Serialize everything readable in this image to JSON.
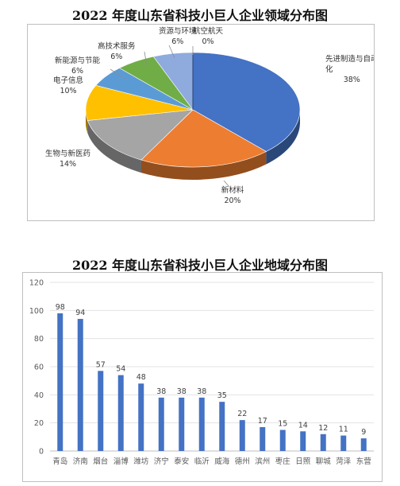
{
  "chart_data": [
    {
      "type": "pie",
      "title": "2022 年度山东省科技小巨人企业领域分布图",
      "slices": [
        {
          "name": "先进制造与自动化",
          "label_lines": [
            "先进制造与自动",
            "化"
          ],
          "value": 38,
          "pct_label": "38%",
          "color": "#4472C4"
        },
        {
          "name": "新材料",
          "label_lines": [
            "新材料"
          ],
          "value": 20,
          "pct_label": "20%",
          "color": "#ED7D31"
        },
        {
          "name": "生物与新医药",
          "label_lines": [
            "生物与新医药"
          ],
          "value": 14,
          "pct_label": "14%",
          "color": "#A5A5A5"
        },
        {
          "name": "电子信息",
          "label_lines": [
            "电子信息"
          ],
          "value": 10,
          "pct_label": "10%",
          "color": "#FFC000"
        },
        {
          "name": "新能源与节能",
          "label_lines": [
            "新能源与节能"
          ],
          "value": 6,
          "pct_label": "6%",
          "color": "#5B9BD5"
        },
        {
          "name": "高技术服务",
          "label_lines": [
            "高技术服务"
          ],
          "value": 6,
          "pct_label": "6%",
          "color": "#70AD47"
        },
        {
          "name": "资源与环境",
          "label_lines": [
            "资源与环境"
          ],
          "value": 6,
          "pct_label": "6%",
          "color": "#8FAADC"
        },
        {
          "name": "航空航天",
          "label_lines": [
            "航空航天"
          ],
          "value": 0,
          "pct_label": "0%",
          "color": "#264478"
        }
      ]
    },
    {
      "type": "bar",
      "title": "2022 年度山东省科技小巨人企业地域分布图",
      "categories": [
        "青岛",
        "济南",
        "烟台",
        "淄博",
        "潍坊",
        "济宁",
        "泰安",
        "临沂",
        "威海",
        "德州",
        "滨州",
        "枣庄",
        "日照",
        "聊城",
        "菏泽",
        "东营"
      ],
      "values": [
        98,
        94,
        57,
        54,
        48,
        38,
        38,
        38,
        35,
        22,
        17,
        15,
        14,
        12,
        11,
        9
      ],
      "ylim": [
        0,
        120
      ],
      "yticks": [
        0,
        20,
        40,
        60,
        80,
        100,
        120
      ],
      "grid": true,
      "bar_color": "#4472C4",
      "xlabel": "",
      "ylabel": ""
    }
  ]
}
